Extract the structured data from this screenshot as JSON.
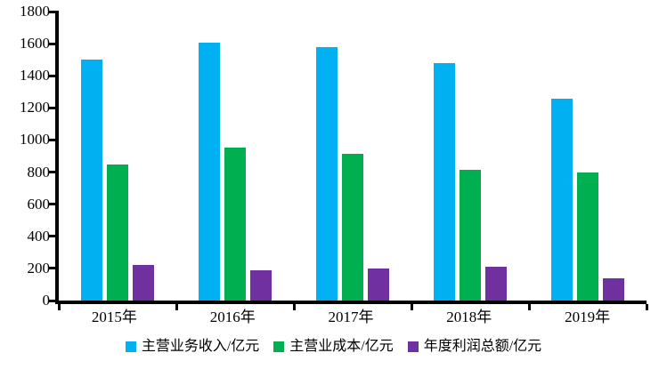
{
  "chart_data": {
    "type": "bar",
    "title": "",
    "xlabel": "",
    "ylabel": "",
    "categories": [
      "2015年",
      "2016年",
      "2017年",
      "2018年",
      "2019年"
    ],
    "series": [
      {
        "name": "主营业务收入/亿元",
        "slug": "revenue",
        "color": "#00B0F0",
        "values": [
          1500,
          1605,
          1580,
          1480,
          1260
        ]
      },
      {
        "name": "主营业成本/亿元",
        "slug": "cost",
        "color": "#00B050",
        "values": [
          850,
          950,
          915,
          815,
          800
        ]
      },
      {
        "name": "年度利润总额/亿元",
        "slug": "profit",
        "color": "#7030A0",
        "values": [
          220,
          190,
          200,
          210,
          140
        ]
      }
    ],
    "ylim": [
      0,
      1800
    ],
    "yticks": [
      0,
      200,
      400,
      600,
      800,
      1000,
      1200,
      1400,
      1600,
      1800
    ],
    "grid": false,
    "legend_position": "bottom",
    "axis_color": "#000000",
    "background_color": "#FFFFFF"
  }
}
